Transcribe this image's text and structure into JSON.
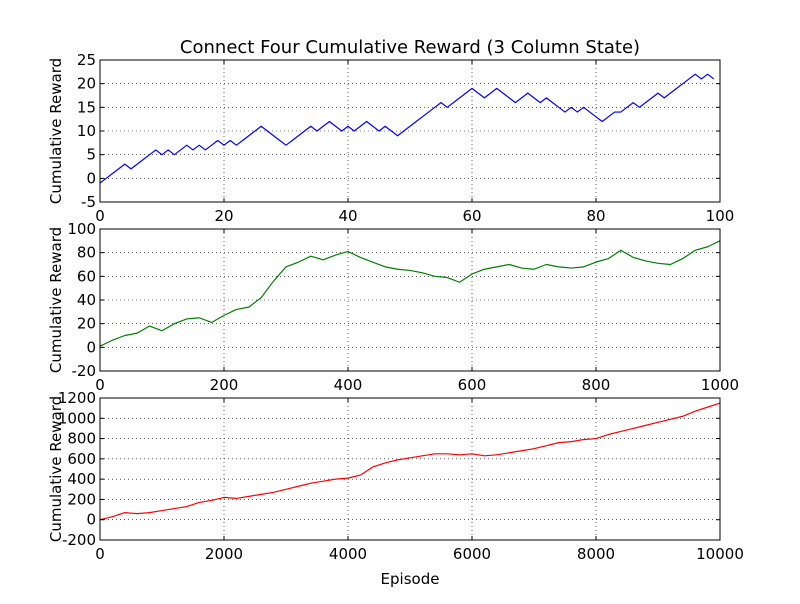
{
  "figure": {
    "title": "Connect Four Cumulative Reward (3 Column State)"
  },
  "chart_data": [
    {
      "type": "line",
      "title": "Connect Four Cumulative Reward (3 Column State)",
      "xlabel": "",
      "ylabel": "Cumulative Reward",
      "xlim": [
        0,
        100
      ],
      "ylim": [
        -5,
        25
      ],
      "xticks": [
        0,
        20,
        40,
        60,
        80,
        100
      ],
      "yticks": [
        -5,
        0,
        5,
        10,
        15,
        20,
        25
      ],
      "grid": true,
      "color": "#0000ff",
      "series": [
        {
          "x": [
            0,
            1,
            2,
            3,
            4,
            5,
            6,
            7,
            8,
            9,
            10,
            11,
            12,
            13,
            14,
            15,
            16,
            17,
            18,
            19,
            20,
            21,
            22,
            23,
            24,
            25,
            26,
            27,
            28,
            29,
            30,
            31,
            32,
            33,
            34,
            35,
            36,
            37,
            38,
            39,
            40,
            41,
            42,
            43,
            44,
            45,
            46,
            47,
            48,
            49,
            50,
            51,
            52,
            53,
            54,
            55,
            56,
            57,
            58,
            59,
            60,
            61,
            62,
            63,
            64,
            65,
            66,
            67,
            68,
            69,
            70,
            71,
            72,
            73,
            74,
            75,
            76,
            77,
            78,
            79,
            80,
            81,
            82,
            83,
            84,
            85,
            86,
            87,
            88,
            89,
            90,
            91,
            92,
            93,
            94,
            95,
            96,
            97,
            98,
            99
          ],
          "y": [
            -1,
            0,
            1,
            2,
            3,
            2,
            3,
            4,
            5,
            6,
            5,
            6,
            5,
            6,
            7,
            6,
            7,
            6,
            7,
            8,
            7,
            8,
            7,
            8,
            9,
            10,
            11,
            10,
            9,
            8,
            7,
            8,
            9,
            10,
            11,
            10,
            11,
            12,
            11,
            10,
            11,
            10,
            11,
            12,
            11,
            10,
            11,
            10,
            9,
            10,
            11,
            12,
            13,
            14,
            15,
            16,
            15,
            16,
            17,
            18,
            19,
            18,
            17,
            18,
            19,
            18,
            17,
            16,
            17,
            18,
            17,
            16,
            17,
            16,
            15,
            14,
            15,
            14,
            15,
            14,
            13,
            12,
            13,
            14,
            14,
            15,
            16,
            15,
            16,
            17,
            18,
            17,
            18,
            19,
            20,
            21,
            22,
            21,
            22,
            21
          ]
        }
      ]
    },
    {
      "type": "line",
      "title": "",
      "xlabel": "",
      "ylabel": "Cumulative Reward",
      "xlim": [
        0,
        1000
      ],
      "ylim": [
        -20,
        100
      ],
      "xticks": [
        0,
        200,
        400,
        600,
        800,
        1000
      ],
      "yticks": [
        -20,
        0,
        20,
        40,
        60,
        80,
        100
      ],
      "grid": true,
      "color": "#008000",
      "series": [
        {
          "x": [
            0,
            20,
            40,
            60,
            80,
            100,
            120,
            140,
            160,
            180,
            200,
            220,
            240,
            260,
            280,
            300,
            320,
            340,
            360,
            380,
            400,
            420,
            440,
            460,
            480,
            500,
            520,
            540,
            560,
            580,
            600,
            620,
            640,
            660,
            680,
            700,
            720,
            740,
            760,
            780,
            800,
            820,
            840,
            860,
            880,
            900,
            920,
            940,
            960,
            980,
            1000
          ],
          "y": [
            1,
            6,
            10,
            12,
            18,
            14,
            20,
            24,
            25,
            21,
            27,
            32,
            34,
            42,
            56,
            68,
            72,
            77,
            74,
            78,
            81,
            76,
            72,
            68,
            66,
            65,
            63,
            60,
            59,
            55,
            62,
            66,
            68,
            70,
            67,
            66,
            70,
            68,
            67,
            68,
            72,
            75,
            82,
            76,
            73,
            71,
            70,
            75,
            82,
            85,
            90
          ]
        }
      ]
    },
    {
      "type": "line",
      "title": "",
      "xlabel": "Episode",
      "ylabel": "Cumulative Reward",
      "xlim": [
        0,
        10000
      ],
      "ylim": [
        -200,
        1200
      ],
      "xticks": [
        0,
        2000,
        4000,
        6000,
        8000,
        10000
      ],
      "yticks": [
        -200,
        0,
        200,
        400,
        600,
        800,
        1000,
        1200
      ],
      "grid": true,
      "color": "#ff0000",
      "series": [
        {
          "x": [
            0,
            200,
            400,
            600,
            800,
            1000,
            1200,
            1400,
            1600,
            1800,
            2000,
            2200,
            2400,
            2600,
            2800,
            3000,
            3200,
            3400,
            3600,
            3800,
            4000,
            4200,
            4400,
            4600,
            4800,
            5000,
            5200,
            5400,
            5600,
            5800,
            6000,
            6200,
            6400,
            6600,
            6800,
            7000,
            7200,
            7400,
            7600,
            7800,
            8000,
            8200,
            8400,
            8600,
            8800,
            9000,
            9200,
            9400,
            9600,
            9800,
            10000
          ],
          "y": [
            0,
            30,
            70,
            60,
            70,
            90,
            110,
            130,
            170,
            190,
            220,
            210,
            230,
            250,
            270,
            300,
            330,
            360,
            380,
            400,
            410,
            440,
            520,
            560,
            590,
            610,
            630,
            650,
            650,
            640,
            650,
            630,
            640,
            660,
            680,
            700,
            730,
            760,
            770,
            790,
            800,
            840,
            870,
            900,
            930,
            960,
            990,
            1020,
            1070,
            1110,
            1150
          ]
        }
      ]
    }
  ]
}
